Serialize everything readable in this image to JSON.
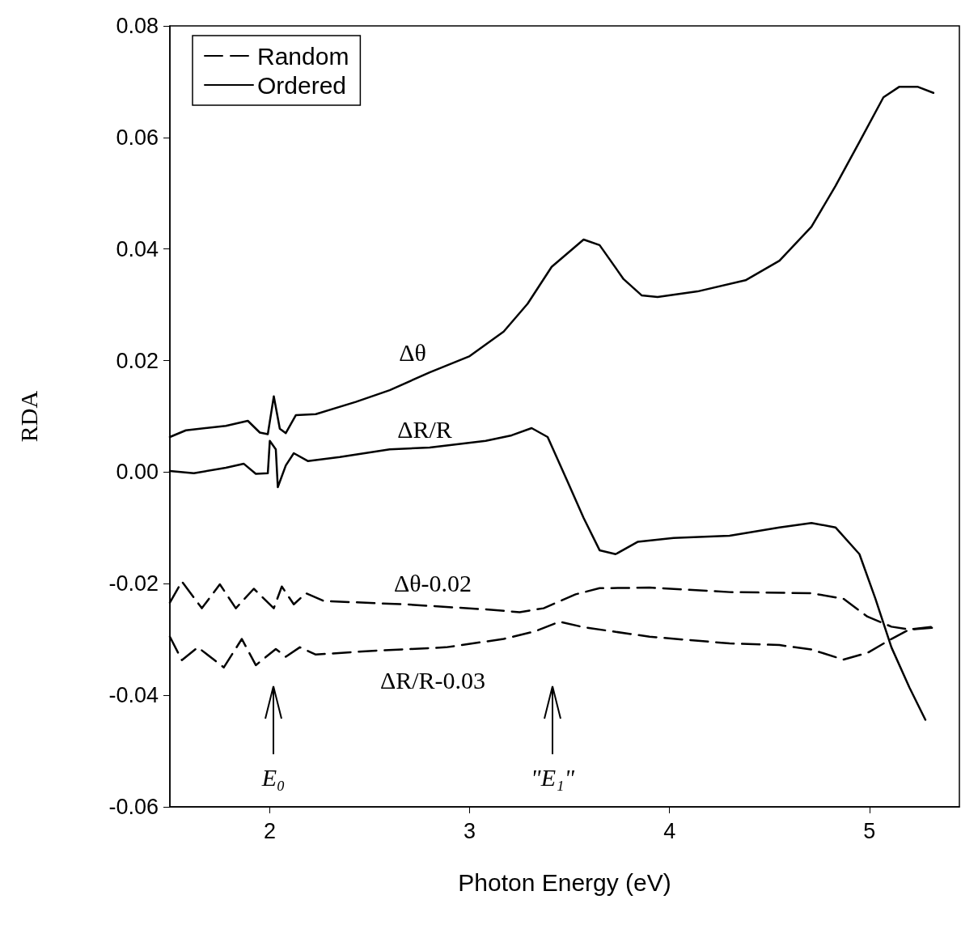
{
  "chart_data": {
    "type": "line",
    "xlabel": "Photon Energy (eV)",
    "ylabel": "RDA",
    "xlim": [
      1.5,
      5.45
    ],
    "xticks": [
      2,
      3,
      4,
      5
    ],
    "ylim": [
      -0.06,
      0.08
    ],
    "yticks": [
      -0.06,
      -0.04,
      -0.02,
      {
        "value": 0,
        "label": "0.00"
      },
      0.02,
      0.04,
      0.06,
      0.08
    ],
    "grid": false,
    "legend": "top left",
    "marker": "none",
    "series": [
      {
        "name": "Random",
        "color": "#000000",
        "line_style": "dashed",
        "x": [
          1.5,
          1.56,
          1.66,
          1.75,
          1.83,
          1.92,
          2.02,
          2.06,
          2.12,
          2.18,
          2.27,
          2.68,
          3.08,
          3.25,
          3.37,
          3.53,
          3.65,
          3.9,
          4.3,
          4.71,
          4.87,
          4.99,
          5.11,
          5.2,
          5.32
        ],
        "values": [
          -0.0234,
          -0.0196,
          -0.0244,
          -0.0201,
          -0.0244,
          -0.0209,
          -0.0244,
          -0.0205,
          -0.0237,
          -0.0217,
          -0.0231,
          -0.0237,
          -0.0246,
          -0.0251,
          -0.0244,
          -0.0219,
          -0.0208,
          -0.0207,
          -0.0215,
          -0.0217,
          -0.0227,
          -0.0259,
          -0.0277,
          -0.0282,
          -0.0277
        ]
      },
      {
        "color": "#000000",
        "line_style": "dashed",
        "x": [
          1.5,
          1.56,
          1.64,
          1.77,
          1.86,
          1.93,
          2.03,
          2.08,
          2.15,
          2.23,
          2.48,
          2.88,
          3.17,
          3.33,
          3.45,
          3.57,
          3.9,
          4.3,
          4.55,
          4.71,
          4.87,
          4.99,
          5.11,
          5.2,
          5.32
        ],
        "values": [
          -0.0295,
          -0.0337,
          -0.0314,
          -0.035,
          -0.0299,
          -0.0346,
          -0.0317,
          -0.0331,
          -0.0314,
          -0.0327,
          -0.0321,
          -0.0314,
          -0.0299,
          -0.0285,
          -0.0268,
          -0.0278,
          -0.0295,
          -0.0307,
          -0.031,
          -0.0318,
          -0.0336,
          -0.0324,
          -0.0299,
          -0.0282,
          -0.0279
        ]
      },
      {
        "name": "Ordered",
        "color": "#000000",
        "line_style": "solid",
        "x": [
          1.5,
          1.58,
          1.78,
          1.89,
          1.95,
          1.99,
          2.02,
          2.05,
          2.08,
          2.13,
          2.23,
          2.43,
          2.6,
          2.8,
          3.0,
          3.17,
          3.29,
          3.41,
          3.57,
          3.65,
          3.77,
          3.86,
          3.94,
          4.14,
          4.38,
          4.55,
          4.71,
          4.83,
          4.95,
          5.07,
          5.15,
          5.24,
          5.32
        ],
        "values": [
          0.0063,
          0.0075,
          0.0083,
          0.0092,
          0.0071,
          0.0068,
          0.0136,
          0.0078,
          0.007,
          0.0102,
          0.0104,
          0.0126,
          0.0147,
          0.0179,
          0.0208,
          0.0252,
          0.0302,
          0.0368,
          0.0417,
          0.0407,
          0.0346,
          0.0317,
          0.0314,
          0.0324,
          0.0344,
          0.0379,
          0.044,
          0.0513,
          0.0592,
          0.0672,
          0.0691,
          0.0691,
          0.068
        ]
      },
      {
        "color": "#000000",
        "line_style": "solid",
        "x": [
          1.5,
          1.62,
          1.78,
          1.87,
          1.93,
          1.99,
          2.0,
          2.03,
          2.04,
          2.08,
          2.12,
          2.19,
          2.35,
          2.6,
          2.8,
          3.08,
          3.21,
          3.31,
          3.39,
          3.49,
          3.57,
          3.65,
          3.73,
          3.84,
          4.02,
          4.3,
          4.55,
          4.71,
          4.83,
          4.95,
          5.03,
          5.11,
          5.2,
          5.28
        ],
        "values": [
          0.0002,
          -0.0002,
          0.0008,
          0.0015,
          -0.0003,
          -0.0002,
          0.0056,
          0.0041,
          -0.0027,
          0.0012,
          0.0034,
          0.002,
          0.0027,
          0.0041,
          0.0044,
          0.0056,
          0.0066,
          0.0079,
          0.0063,
          -0.0017,
          -0.0082,
          -0.014,
          -0.0147,
          -0.0125,
          -0.0118,
          -0.0114,
          -0.0099,
          -0.0091,
          -0.0099,
          -0.0147,
          -0.0227,
          -0.0314,
          -0.0386,
          -0.0444
        ]
      }
    ],
    "annotations": [
      "Δθ",
      "ΔR/R",
      "Δθ-0.02",
      "ΔR/R-0.03",
      "E₀",
      "\"E₁\""
    ]
  }
}
